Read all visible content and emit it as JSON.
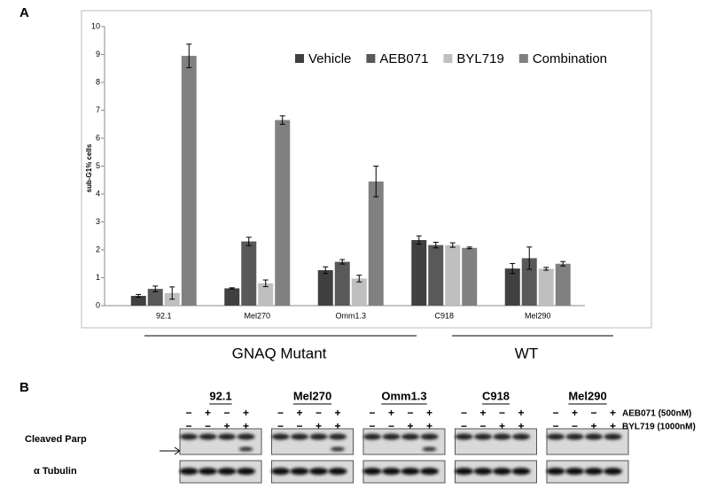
{
  "panel_labels": [
    "A",
    "B"
  ],
  "chart_data": {
    "type": "bar",
    "ylabel": "sub-G1% cells",
    "categories": [
      "92.1",
      "Mel270",
      "Omm1.3",
      "C918",
      "Mel290"
    ],
    "series": [
      {
        "name": "Vehicle",
        "color": "#404040",
        "values": [
          0.35,
          0.62,
          1.27,
          2.35,
          1.33
        ],
        "errors": [
          0.05,
          0.02,
          0.12,
          0.15,
          0.18
        ]
      },
      {
        "name": "AEB071",
        "color": "#595959",
        "values": [
          0.6,
          2.3,
          1.57,
          2.17,
          1.7
        ],
        "errors": [
          0.1,
          0.15,
          0.08,
          0.1,
          0.4
        ]
      },
      {
        "name": "BYL719",
        "color": "#bfbfbf",
        "values": [
          0.45,
          0.8,
          0.97,
          2.17,
          1.32
        ],
        "errors": [
          0.22,
          0.12,
          0.12,
          0.08,
          0.05
        ]
      },
      {
        "name": "Combination",
        "color": "#808080",
        "values": [
          8.95,
          6.65,
          4.45,
          2.07,
          1.5
        ],
        "errors": [
          0.42,
          0.15,
          0.55,
          0.03,
          0.08
        ]
      }
    ],
    "ylim": [
      0,
      10
    ],
    "yticks": [
      0,
      1,
      2,
      3,
      4,
      5,
      6,
      7,
      8,
      9,
      10
    ],
    "grid": false,
    "legend": "upper right",
    "group_labels": [
      "GNAQ Mutant",
      "WT"
    ]
  },
  "blot": {
    "cell_lines": [
      "92.1",
      "Mel270",
      "Omm1.3",
      "C918",
      "Mel290"
    ],
    "treatments": [
      {
        "label": "AEB071 (500nM)",
        "signs": [
          "−",
          "+",
          "−",
          "+"
        ]
      },
      {
        "label": "BYL719 (1000nM)",
        "signs": [
          "−",
          "−",
          "+",
          "+"
        ]
      }
    ],
    "rows": [
      "Cleaved Parp",
      "α Tubulin"
    ]
  }
}
